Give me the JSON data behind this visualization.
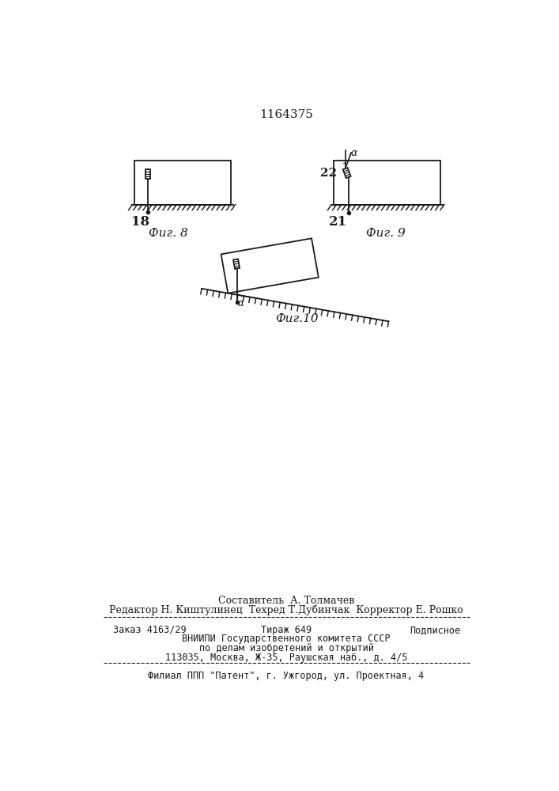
{
  "title": "1164375",
  "bg_color": "#ffffff",
  "line_color": "#1a1a1a",
  "fig8_label": "18",
  "fig8_caption": "Фиг. 8",
  "fig9_label_21": "21",
  "fig9_label_22": "22",
  "fig9_caption": "Фиг. 9",
  "fig10_caption": "Фиг.10",
  "footer_line1": "Составитель  А. Толмачев",
  "footer_line2": "Редактор Н. Киштулинец  Техред Т.Дубинчак  Корректор Е. Рошко",
  "footer_line3a": "Заказ 4163/29",
  "footer_line3b": "Тираж 649",
  "footer_line3c": "Подписное",
  "footer_line4": "ВНИИПИ Государственного комитета СССР",
  "footer_line5": "по делам изобретений и открытий",
  "footer_line6": "113035, Москва, Ж-35, Раушская наб., д. 4/5",
  "footer_line7": "Филиал ППП \"Патент\", г. Ужгород, ул. Проектная, 4"
}
